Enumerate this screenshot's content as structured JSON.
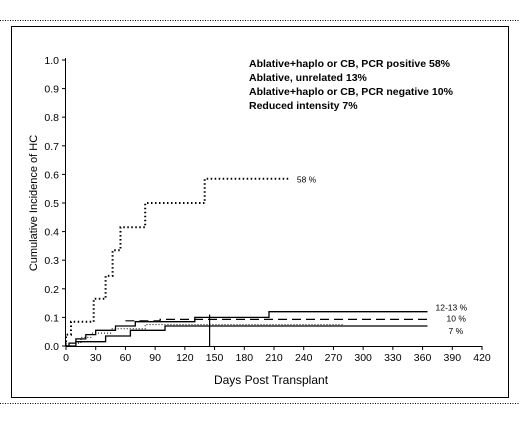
{
  "chart_data": {
    "type": "line",
    "subtype": "step",
    "xlabel": "Days Post Transplant",
    "ylabel": "Cumulative Incidence of HC",
    "xlim": [
      0,
      420
    ],
    "ylim": [
      0,
      1.0
    ],
    "x_ticks": [
      0,
      30,
      60,
      90,
      120,
      150,
      180,
      210,
      240,
      270,
      300,
      330,
      360,
      390,
      420
    ],
    "y_ticks": [
      "0.0",
      "0.1",
      "0.2",
      "0.3",
      "0.4",
      "0.5",
      "0.6",
      "0.7",
      "0.8",
      "0.9",
      "1.0"
    ],
    "grid": false,
    "legend_position": "top-right",
    "legend": [
      "Ablative+haplo or CB, PCR positive  58%",
      "Ablative, unrelated  13%",
      "Ablative+haplo or CB, PCR negative  10%",
      "Reduced intensity  7%"
    ],
    "series": [
      {
        "style": "dotted-heavy",
        "end_label": "58 %",
        "points": [
          [
            0,
            0
          ],
          [
            0,
            0.04
          ],
          [
            5,
            0.04
          ],
          [
            5,
            0.085
          ],
          [
            28,
            0.085
          ],
          [
            28,
            0.165
          ],
          [
            40,
            0.165
          ],
          [
            40,
            0.245
          ],
          [
            47,
            0.245
          ],
          [
            47,
            0.335
          ],
          [
            55,
            0.335
          ],
          [
            55,
            0.415
          ],
          [
            80,
            0.415
          ],
          [
            80,
            0.5
          ],
          [
            140,
            0.5
          ],
          [
            140,
            0.585
          ],
          [
            225,
            0.585
          ]
        ]
      },
      {
        "style": "solid",
        "end_label": "12-13 %",
        "points": [
          [
            0,
            0
          ],
          [
            3,
            0
          ],
          [
            3,
            0.01
          ],
          [
            10,
            0.01
          ],
          [
            10,
            0.025
          ],
          [
            20,
            0.025
          ],
          [
            20,
            0.04
          ],
          [
            30,
            0.04
          ],
          [
            30,
            0.055
          ],
          [
            50,
            0.055
          ],
          [
            50,
            0.07
          ],
          [
            70,
            0.07
          ],
          [
            70,
            0.085
          ],
          [
            130,
            0.085
          ],
          [
            130,
            0.1
          ],
          [
            205,
            0.1
          ],
          [
            205,
            0.12
          ],
          [
            365,
            0.12
          ]
        ]
      },
      {
        "style": "dashed",
        "end_label": "10 %",
        "points": [
          [
            60,
            0.088
          ],
          [
            95,
            0.088
          ],
          [
            95,
            0.093
          ],
          [
            365,
            0.093
          ]
        ]
      },
      {
        "style": "solid",
        "end_label": "7 %",
        "points": [
          [
            0,
            0
          ],
          [
            10,
            0
          ],
          [
            10,
            0.015
          ],
          [
            40,
            0.015
          ],
          [
            40,
            0.035
          ],
          [
            65,
            0.035
          ],
          [
            65,
            0.055
          ],
          [
            100,
            0.055
          ],
          [
            100,
            0.07
          ],
          [
            365,
            0.07
          ]
        ]
      },
      {
        "style": "dotted",
        "end_label": "",
        "points": [
          [
            0,
            0.01
          ],
          [
            15,
            0.01
          ],
          [
            15,
            0.03
          ],
          [
            25,
            0.03
          ],
          [
            25,
            0.045
          ],
          [
            45,
            0.045
          ],
          [
            45,
            0.06
          ],
          [
            80,
            0.06
          ],
          [
            80,
            0.075
          ],
          [
            280,
            0.075
          ]
        ]
      }
    ],
    "vertical_marker_x": 145
  }
}
